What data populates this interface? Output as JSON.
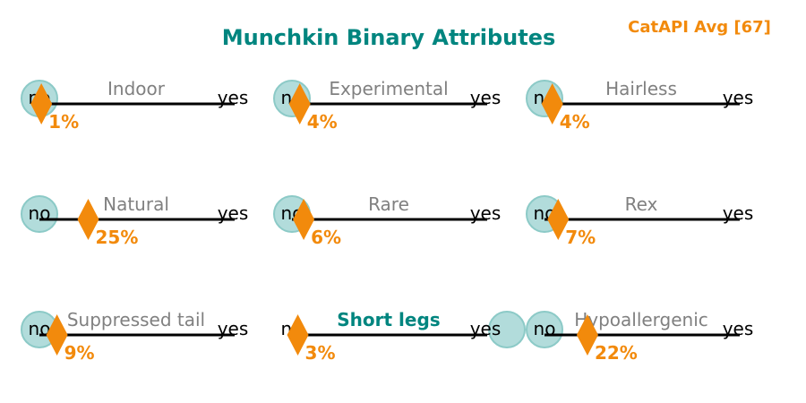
{
  "chart_data": {
    "type": "scatter",
    "title": "Munchkin Binary Attributes",
    "badge": "CatAPI Avg [67]",
    "colors": {
      "title": "#00857f",
      "highlight_label": "#00857f",
      "label": "#808080",
      "marker": "#f28a0c",
      "circle_fill": "#b2dcdb",
      "circle_stroke": "#8ccac7",
      "line": "#000000",
      "end_label": "#000000"
    },
    "end_labels": {
      "low": "no",
      "high": "yes"
    },
    "attributes": [
      {
        "label": "Indoor",
        "answer": "no",
        "value": 1,
        "value_label": "1%",
        "highlight": false
      },
      {
        "label": "Experimental",
        "answer": "no",
        "value": 4,
        "value_label": "4%",
        "highlight": false
      },
      {
        "label": "Hairless",
        "answer": "no",
        "value": 4,
        "value_label": "4%",
        "highlight": false
      },
      {
        "label": "Natural",
        "answer": "no",
        "value": 25,
        "value_label": "25%",
        "highlight": false
      },
      {
        "label": "Rare",
        "answer": "no",
        "value": 6,
        "value_label": "6%",
        "highlight": false
      },
      {
        "label": "Rex",
        "answer": "no",
        "value": 7,
        "value_label": "7%",
        "highlight": false
      },
      {
        "label": "Suppressed tail",
        "answer": "no",
        "value": 9,
        "value_label": "9%",
        "highlight": false
      },
      {
        "label": "Short legs",
        "answer": "yes",
        "value": 3,
        "value_label": "3%",
        "highlight": true
      },
      {
        "label": "Hypoallergenic",
        "answer": "no",
        "value": 22,
        "value_label": "22%",
        "highlight": false
      }
    ],
    "xlim": [
      0,
      100
    ]
  }
}
